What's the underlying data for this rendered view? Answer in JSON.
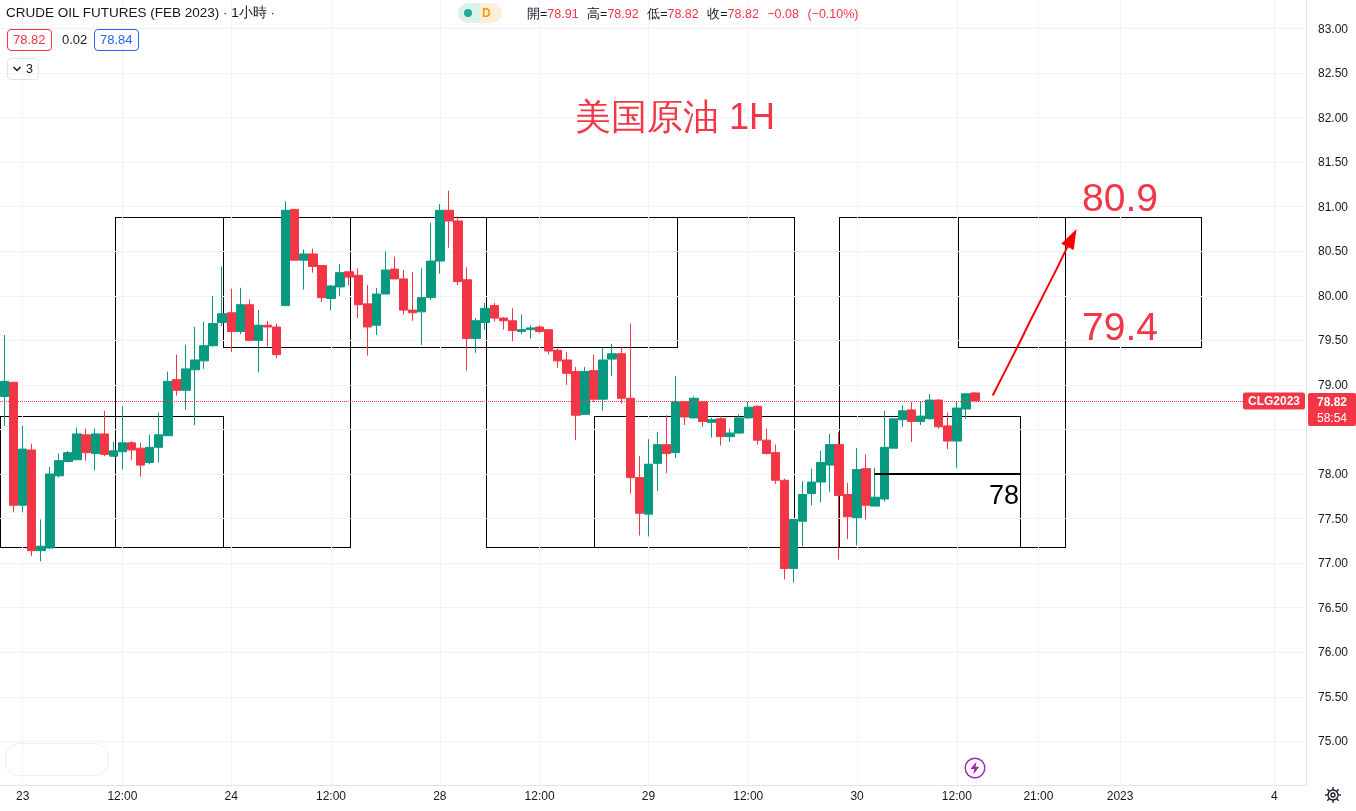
{
  "chart_data": {
    "type": "candlestick",
    "title": "CRUDE OIL FUTURES (FEB 2023) · 1小時 ·",
    "subtitle": "開=78.91 高=78.92 低=78.82 收=78.82 −0.08 (−0.10%)",
    "categories": [
      null,
      null,
      "23",
      null,
      null,
      null,
      null,
      null,
      null,
      null,
      null,
      null,
      null,
      "12:00",
      null,
      null,
      null,
      null,
      null,
      null,
      null,
      null,
      null,
      null,
      null,
      "24",
      null,
      null,
      null,
      null,
      null,
      null,
      null,
      null,
      null,
      null,
      "12:00",
      null,
      null,
      null,
      null,
      null,
      null,
      null,
      null,
      null,
      null,
      null,
      "28",
      null,
      null,
      null,
      null,
      null,
      null,
      null,
      null,
      null,
      null,
      "12:00",
      null,
      null,
      null,
      null,
      null,
      null,
      null,
      null,
      null,
      null,
      null,
      "29",
      null,
      null,
      null,
      null,
      null,
      null,
      null,
      null,
      null,
      null,
      "12:00",
      null,
      null,
      null,
      null,
      null,
      null,
      null,
      null,
      null,
      null,
      null,
      "30",
      null,
      null,
      null,
      null,
      null,
      null,
      null,
      null,
      null,
      null,
      "12:00",
      null,
      null,
      null,
      null,
      null,
      null,
      null,
      null,
      "21:00",
      null,
      null,
      null,
      null,
      null,
      null,
      null,
      null,
      "2023",
      null,
      null,
      null,
      null,
      null,
      null,
      null,
      null,
      null,
      null,
      null,
      null,
      null,
      null,
      null,
      null,
      "4",
      null,
      null,
      null
    ],
    "ohlc": [
      [
        78.87,
        79.56,
        78.54,
        79.04
      ],
      [
        79.03,
        79.03,
        77.57,
        77.65
      ],
      [
        77.65,
        78.54,
        77.57,
        78.28
      ],
      [
        78.27,
        78.34,
        77.08,
        77.14
      ],
      [
        77.14,
        77.49,
        77.02,
        77.19
      ],
      [
        77.17,
        78.08,
        77.16,
        78.0
      ],
      [
        77.98,
        78.23,
        77.96,
        78.15
      ],
      [
        78.14,
        78.26,
        78.13,
        78.24
      ],
      [
        78.16,
        78.52,
        78.16,
        78.45
      ],
      [
        78.44,
        78.51,
        78.15,
        78.24
      ],
      [
        78.23,
        78.51,
        78.04,
        78.45
      ],
      [
        78.45,
        78.71,
        78.2,
        78.22
      ],
      [
        78.2,
        78.36,
        78.19,
        78.26
      ],
      [
        78.25,
        78.76,
        78.05,
        78.35
      ],
      [
        78.35,
        78.37,
        78.16,
        78.27
      ],
      [
        78.29,
        78.35,
        77.97,
        78.1
      ],
      [
        78.13,
        78.44,
        78.11,
        78.3
      ],
      [
        78.3,
        78.69,
        78.13,
        78.44
      ],
      [
        78.43,
        79.15,
        78.43,
        79.04
      ],
      [
        79.06,
        79.34,
        78.88,
        78.94
      ],
      [
        78.94,
        79.45,
        78.72,
        79.18
      ],
      [
        79.17,
        79.65,
        78.55,
        79.28
      ],
      [
        79.27,
        79.71,
        79.18,
        79.44
      ],
      [
        79.44,
        80.0,
        79.43,
        79.69
      ],
      [
        79.7,
        80.33,
        79.66,
        79.8
      ],
      [
        79.81,
        80.08,
        79.37,
        79.6
      ],
      [
        79.6,
        80.09,
        79.57,
        79.9
      ],
      [
        79.9,
        79.96,
        79.49,
        79.5
      ],
      [
        79.5,
        79.84,
        79.14,
        79.67
      ],
      [
        79.67,
        79.72,
        79.43,
        79.65
      ],
      [
        79.65,
        79.69,
        79.3,
        79.34
      ],
      [
        79.89,
        81.06,
        79.89,
        80.96
      ],
      [
        80.97,
        80.97,
        80.4,
        80.4
      ],
      [
        80.4,
        80.52,
        80.07,
        80.47
      ],
      [
        80.47,
        80.53,
        80.26,
        80.33
      ],
      [
        80.34,
        80.34,
        79.93,
        79.98
      ],
      [
        79.97,
        80.12,
        79.84,
        80.11
      ],
      [
        80.1,
        80.36,
        80.0,
        80.26
      ],
      [
        80.27,
        80.27,
        80.12,
        80.21
      ],
      [
        80.23,
        80.31,
        79.75,
        79.9
      ],
      [
        79.91,
        80.12,
        79.33,
        79.65
      ],
      [
        79.67,
        80.09,
        79.56,
        80.02
      ],
      [
        80.02,
        80.5,
        80.02,
        80.29
      ],
      [
        80.3,
        80.44,
        80.19,
        80.19
      ],
      [
        80.19,
        80.29,
        79.79,
        79.84
      ],
      [
        79.84,
        80.27,
        79.72,
        79.81
      ],
      [
        79.82,
        80.31,
        79.45,
        79.98
      ],
      [
        79.98,
        80.82,
        79.95,
        80.39
      ],
      [
        80.39,
        81.03,
        80.25,
        80.96
      ],
      [
        80.96,
        81.18,
        80.54,
        80.84
      ],
      [
        80.84,
        80.89,
        80.12,
        80.16
      ],
      [
        80.18,
        80.32,
        79.16,
        79.52
      ],
      [
        79.52,
        79.75,
        79.36,
        79.72
      ],
      [
        79.7,
        79.92,
        79.62,
        79.86
      ],
      [
        79.89,
        79.92,
        79.71,
        79.75
      ],
      [
        79.75,
        79.76,
        79.62,
        79.72
      ],
      [
        79.72,
        79.86,
        79.49,
        79.61
      ],
      [
        79.6,
        79.79,
        79.57,
        79.62
      ],
      [
        79.62,
        79.67,
        79.52,
        79.64
      ],
      [
        79.65,
        79.67,
        79.58,
        79.6
      ],
      [
        79.62,
        79.62,
        79.34,
        79.38
      ],
      [
        79.39,
        79.41,
        79.19,
        79.27
      ],
      [
        79.28,
        79.37,
        79.0,
        79.13
      ],
      [
        79.15,
        79.2,
        78.38,
        78.66
      ],
      [
        78.67,
        79.2,
        78.67,
        79.15
      ],
      [
        79.16,
        79.34,
        78.81,
        78.84
      ],
      [
        78.84,
        79.42,
        78.71,
        79.28
      ],
      [
        79.29,
        79.46,
        79.1,
        79.35
      ],
      [
        79.35,
        79.43,
        78.79,
        78.85
      ],
      [
        78.85,
        79.69,
        77.78,
        77.96
      ],
      [
        77.96,
        78.2,
        77.31,
        77.56
      ],
      [
        77.55,
        78.39,
        77.3,
        78.11
      ],
      [
        78.12,
        78.47,
        77.81,
        78.33
      ],
      [
        78.33,
        78.66,
        78.01,
        78.23
      ],
      [
        78.24,
        79.1,
        78.18,
        78.81
      ],
      [
        78.81,
        78.81,
        78.55,
        78.64
      ],
      [
        78.63,
        78.87,
        78.63,
        78.85
      ],
      [
        78.81,
        78.81,
        78.53,
        78.59
      ],
      [
        78.58,
        78.63,
        78.41,
        78.61
      ],
      [
        78.62,
        78.65,
        78.32,
        78.42
      ],
      [
        78.42,
        78.51,
        78.36,
        78.46
      ],
      [
        78.46,
        78.67,
        78.45,
        78.63
      ],
      [
        78.63,
        78.81,
        78.62,
        78.75
      ],
      [
        78.76,
        78.77,
        78.33,
        78.38
      ],
      [
        78.38,
        78.51,
        78.22,
        78.23
      ],
      [
        78.24,
        78.33,
        77.89,
        77.93
      ],
      [
        77.93,
        77.95,
        76.82,
        76.94
      ],
      [
        76.94,
        77.49,
        76.78,
        77.49
      ],
      [
        77.47,
        77.92,
        77.19,
        77.77
      ],
      [
        77.78,
        78.06,
        77.65,
        77.91
      ],
      [
        77.91,
        78.26,
        77.68,
        78.13
      ],
      [
        78.1,
        78.45,
        77.8,
        78.33
      ],
      [
        78.33,
        78.47,
        77.04,
        77.76
      ],
      [
        77.77,
        77.9,
        77.27,
        77.52
      ],
      [
        77.51,
        78.29,
        77.2,
        78.05
      ],
      [
        78.06,
        78.22,
        77.49,
        77.65
      ],
      [
        77.64,
        78.07,
        77.64,
        77.74
      ],
      [
        77.72,
        78.71,
        77.69,
        78.3
      ],
      [
        78.29,
        78.62,
        78.29,
        78.62
      ],
      [
        78.61,
        78.77,
        78.53,
        78.71
      ],
      [
        78.72,
        78.81,
        78.36,
        78.59
      ],
      [
        78.59,
        78.81,
        78.55,
        78.65
      ],
      [
        78.62,
        78.9,
        78.61,
        78.83
      ],
      [
        78.83,
        78.84,
        78.51,
        78.53
      ],
      [
        78.54,
        78.69,
        78.28,
        78.37
      ],
      [
        78.37,
        78.81,
        78.07,
        78.74
      ],
      [
        78.73,
        78.9,
        78.62,
        78.9
      ],
      [
        78.91,
        78.92,
        78.82,
        78.82
      ],
      null,
      null,
      null,
      null,
      null,
      null,
      null,
      null,
      null,
      null,
      null,
      null,
      null,
      null,
      null,
      null,
      null,
      null,
      null,
      null,
      null,
      null,
      null,
      null,
      null,
      null,
      null,
      null,
      null,
      null,
      null,
      null,
      null,
      null,
      null,
      null
    ],
    "colors": [
      "#089981",
      "#f23645",
      "#089981",
      "#f23645",
      "#089981",
      "#089981",
      "#089981",
      "#089981",
      "#089981",
      "#f23645",
      "#089981",
      "#f23645",
      "#089981",
      "#089981",
      "#f23645",
      "#f23645",
      "#089981",
      "#089981",
      "#089981",
      "#f23645",
      "#089981",
      "#089981",
      "#089981",
      "#089981",
      "#089981",
      "#f23645",
      "#089981",
      "#f23645",
      "#089981",
      "#f23645",
      "#f23645",
      "#089981",
      "#f23645",
      "#089981",
      "#f23645",
      "#f23645",
      "#089981",
      "#089981",
      "#f23645",
      "#f23645",
      "#f23645",
      "#089981",
      "#089981",
      "#f23645",
      "#f23645",
      "#f23645",
      "#089981",
      "#089981",
      "#089981",
      "#f23645",
      "#f23645",
      "#f23645",
      "#089981",
      "#089981",
      "#f23645",
      "#f23645",
      "#f23645",
      "#089981",
      "#089981",
      "#f23645",
      "#f23645",
      "#f23645",
      "#f23645",
      "#f23645",
      "#089981",
      "#f23645",
      "#089981",
      "#089981",
      "#f23645",
      "#f23645",
      "#f23645",
      "#089981",
      "#089981",
      "#f23645",
      "#089981",
      "#f23645",
      "#089981",
      "#f23645",
      "#089981",
      "#f23645",
      "#089981",
      "#089981",
      "#089981",
      "#f23645",
      "#f23645",
      "#f23645",
      "#f23645",
      "#089981",
      "#089981",
      "#089981",
      "#089981",
      "#089981",
      "#f23645",
      "#f23645",
      "#089981",
      "#f23645",
      "#089981",
      "#089981",
      "#089981",
      "#089981",
      "#f23645",
      "#089981",
      "#089981",
      "#f23645",
      "#f23645",
      "#089981",
      "#089981",
      "#f23645",
      null,
      null,
      null,
      null,
      null,
      null,
      null,
      null,
      null,
      null,
      null,
      null,
      null,
      null,
      null,
      null,
      null,
      null,
      null,
      null,
      null,
      null,
      null,
      null,
      null,
      null,
      null,
      null,
      null,
      null,
      null,
      null,
      null,
      null,
      null,
      null
    ],
    "series": [
      {
        "type": "line",
        "color": "#000000",
        "values": [
          null,
          null,
          null,
          null,
          null,
          null,
          null,
          null,
          null,
          null,
          null,
          null,
          null,
          null,
          null,
          null,
          null,
          null,
          null,
          null,
          null,
          null,
          null,
          null,
          null,
          null,
          null,
          null,
          null,
          null,
          null,
          null,
          null,
          null,
          null,
          null,
          null,
          null,
          null,
          null,
          null,
          null,
          null,
          null,
          null,
          null,
          null,
          null,
          null,
          null,
          null,
          null,
          null,
          null,
          null,
          null,
          null,
          null,
          null,
          null,
          null,
          null,
          null,
          null,
          null,
          null,
          null,
          null,
          null,
          null,
          null,
          null,
          null,
          null,
          null,
          null,
          null,
          null,
          null,
          null,
          null,
          null,
          null,
          null,
          null,
          null,
          null,
          null,
          null,
          null,
          null,
          null,
          null,
          null,
          null,
          null,
          78,
          78,
          78,
          78,
          78,
          78,
          78,
          78,
          78,
          78,
          78,
          78,
          78,
          78,
          78,
          78,
          78,
          null,
          null,
          null,
          null,
          null,
          null,
          null,
          null,
          null,
          null,
          null,
          null,
          null,
          null,
          null,
          null,
          null,
          null,
          null,
          null,
          null,
          null,
          null,
          null,
          null,
          null,
          null,
          null,
          null,
          null,
          null
        ]
      },
      {
        "type": "line",
        "color": "#ff0000",
        "values": [
          null,
          null,
          null,
          null,
          null,
          null,
          null,
          null,
          null,
          null,
          null,
          null,
          null,
          null,
          null,
          null,
          null,
          null,
          null,
          null,
          null,
          null,
          null,
          null,
          null,
          null,
          null,
          null,
          null,
          null,
          null,
          null,
          null,
          null,
          null,
          null,
          null,
          null,
          null,
          null,
          null,
          null,
          null,
          null,
          null,
          null,
          null,
          null,
          null,
          null,
          null,
          null,
          null,
          null,
          null,
          null,
          null,
          null,
          null,
          null,
          null,
          null,
          null,
          null,
          null,
          null,
          null,
          null,
          null,
          null,
          null,
          null,
          null,
          null,
          null,
          null,
          null,
          null,
          null,
          null,
          null,
          null,
          null,
          null,
          null,
          null,
          null,
          null,
          null,
          null,
          null,
          null,
          null,
          null,
          null,
          null,
          null,
          null,
          null,
          null,
          null,
          null,
          null,
          null,
          null,
          null,
          null,
          null,
          null,
          78.89,
          79.09,
          79.29,
          79.49,
          79.7,
          79.9,
          80.1,
          80.3,
          80.51,
          80.71,
          null,
          null,
          null,
          null,
          null,
          null,
          null,
          null,
          null,
          null,
          null,
          null,
          null,
          null,
          null,
          null,
          null,
          null,
          null,
          null,
          null,
          null,
          null,
          null,
          null
        ]
      }
    ],
    "ylim": [
      74.51,
      83.32
    ],
    "yticks": [
      {
        "value": 75,
        "label": "75.00"
      },
      {
        "value": 75.5,
        "label": "75.50"
      },
      {
        "value": 76,
        "label": "76.00"
      },
      {
        "value": 76.5,
        "label": "76.50"
      },
      {
        "value": 77,
        "label": "77.00"
      },
      {
        "value": 77.5,
        "label": "77.50"
      },
      {
        "value": 78,
        "label": "78.00"
      },
      {
        "value": 78.5,
        "label": null
      },
      {
        "value": 79,
        "label": "79.00"
      },
      {
        "value": 79.5,
        "label": "79.50"
      },
      {
        "value": 80,
        "label": "80.00"
      },
      {
        "value": 80.5,
        "label": "80.50"
      },
      {
        "value": 81,
        "label": "81.00"
      },
      {
        "value": 81.5,
        "label": "81.50"
      },
      {
        "value": 82,
        "label": "82.00"
      },
      {
        "value": 82.5,
        "label": "82.50"
      },
      {
        "value": 83,
        "label": "83.00"
      }
    ],
    "grid": true,
    "ref_lines": [
      {
        "axis": "y",
        "value": 78.82,
        "label": "CLG2023",
        "color": "#f23645",
        "line_style": "dotted"
      }
    ],
    "annotations": [
      "D",
      "78.82",
      "0.02",
      "78.84",
      "3",
      "美国原油 1H",
      "58:54",
      "80.9",
      "79.4",
      "78"
    ]
  }
}
